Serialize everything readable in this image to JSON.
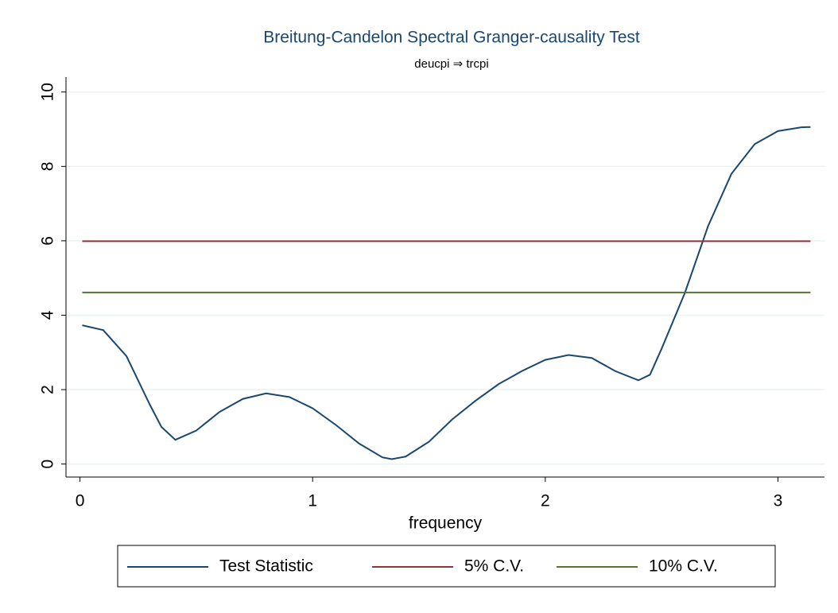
{
  "chart_data": {
    "type": "line",
    "title": "Breitung-Candelon Spectral Granger-causality Test",
    "subtitle": "deucpi ⇒ trcpi",
    "xlabel": "frequency",
    "xlim": [
      -0.06,
      3.2
    ],
    "ylim": [
      -0.35,
      10.4
    ],
    "xticks": [
      0,
      1,
      2,
      3
    ],
    "yticks": [
      0,
      2,
      4,
      6,
      8,
      10
    ],
    "grid": true,
    "legend": "bottom",
    "series": [
      {
        "name": "Test Statistic",
        "color": "#1a476f",
        "x": [
          0.01,
          0.1,
          0.2,
          0.3,
          0.35,
          0.41,
          0.5,
          0.6,
          0.7,
          0.8,
          0.9,
          1.0,
          1.1,
          1.2,
          1.3,
          1.34,
          1.4,
          1.5,
          1.6,
          1.7,
          1.8,
          1.9,
          2.0,
          2.1,
          2.2,
          2.3,
          2.4,
          2.45,
          2.5,
          2.6,
          2.7,
          2.8,
          2.9,
          3.0,
          3.1,
          3.14
        ],
        "values": [
          3.73,
          3.6,
          2.9,
          1.6,
          1.0,
          0.65,
          0.9,
          1.4,
          1.75,
          1.9,
          1.8,
          1.5,
          1.05,
          0.55,
          0.18,
          0.13,
          0.2,
          0.6,
          1.2,
          1.7,
          2.15,
          2.5,
          2.8,
          2.93,
          2.85,
          2.5,
          2.25,
          2.4,
          3.1,
          4.6,
          6.4,
          7.8,
          8.6,
          8.95,
          9.05,
          9.06
        ]
      },
      {
        "name": "5% C.V.",
        "color": "#90353b",
        "x": [
          0.01,
          3.14
        ],
        "values": [
          5.99,
          5.99
        ]
      },
      {
        "name": "10% C.V.",
        "color": "#55752f",
        "x": [
          0.01,
          3.14
        ],
        "values": [
          4.61,
          4.61
        ]
      }
    ]
  }
}
